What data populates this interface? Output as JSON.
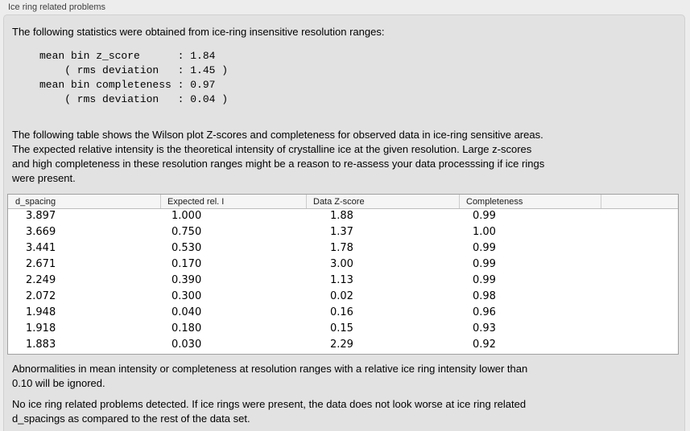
{
  "title": "Ice ring related problems",
  "intro": "The following statistics were obtained from ice-ring insensitive resolution ranges:",
  "stats_block": "mean bin z_score      : 1.84\n    ( rms deviation   : 1.45 )\nmean bin completeness : 0.97\n    ( rms deviation   : 0.04 )",
  "paragraph": "The following table shows the Wilson plot Z-scores and completeness for observed data in ice-ring sensitive areas.\nThe expected relative intensity is the theoretical intensity of crystalline ice at the given resolution. Large z-scores\nand high completeness in these resolution ranges might be a reason to re-assess your data processsing if ice rings\nwere present.",
  "table": {
    "columns": [
      "d_spacing",
      "Expected rel. I",
      "Data Z-score",
      "Completeness"
    ],
    "rows": [
      [
        "3.897",
        "1.000",
        "1.88",
        "0.99"
      ],
      [
        "3.669",
        "0.750",
        "1.37",
        "1.00"
      ],
      [
        "3.441",
        "0.530",
        "1.78",
        "0.99"
      ],
      [
        "2.671",
        "0.170",
        "3.00",
        "0.99"
      ],
      [
        "2.249",
        "0.390",
        "1.13",
        "0.99"
      ],
      [
        "2.072",
        "0.300",
        "0.02",
        "0.98"
      ],
      [
        "1.948",
        "0.040",
        "0.16",
        "0.96"
      ],
      [
        "1.918",
        "0.180",
        "0.15",
        "0.93"
      ],
      [
        "1.883",
        "0.030",
        "2.29",
        "0.92"
      ]
    ]
  },
  "note": "Abnormalities in mean intensity or completeness at resolution ranges with a relative ice ring intensity lower than\n0.10 will be ignored.",
  "conclusion": "No ice ring related problems detected. If ice rings were present, the data does not look worse at ice ring related\nd_spacings as compared to the rest of the data set."
}
